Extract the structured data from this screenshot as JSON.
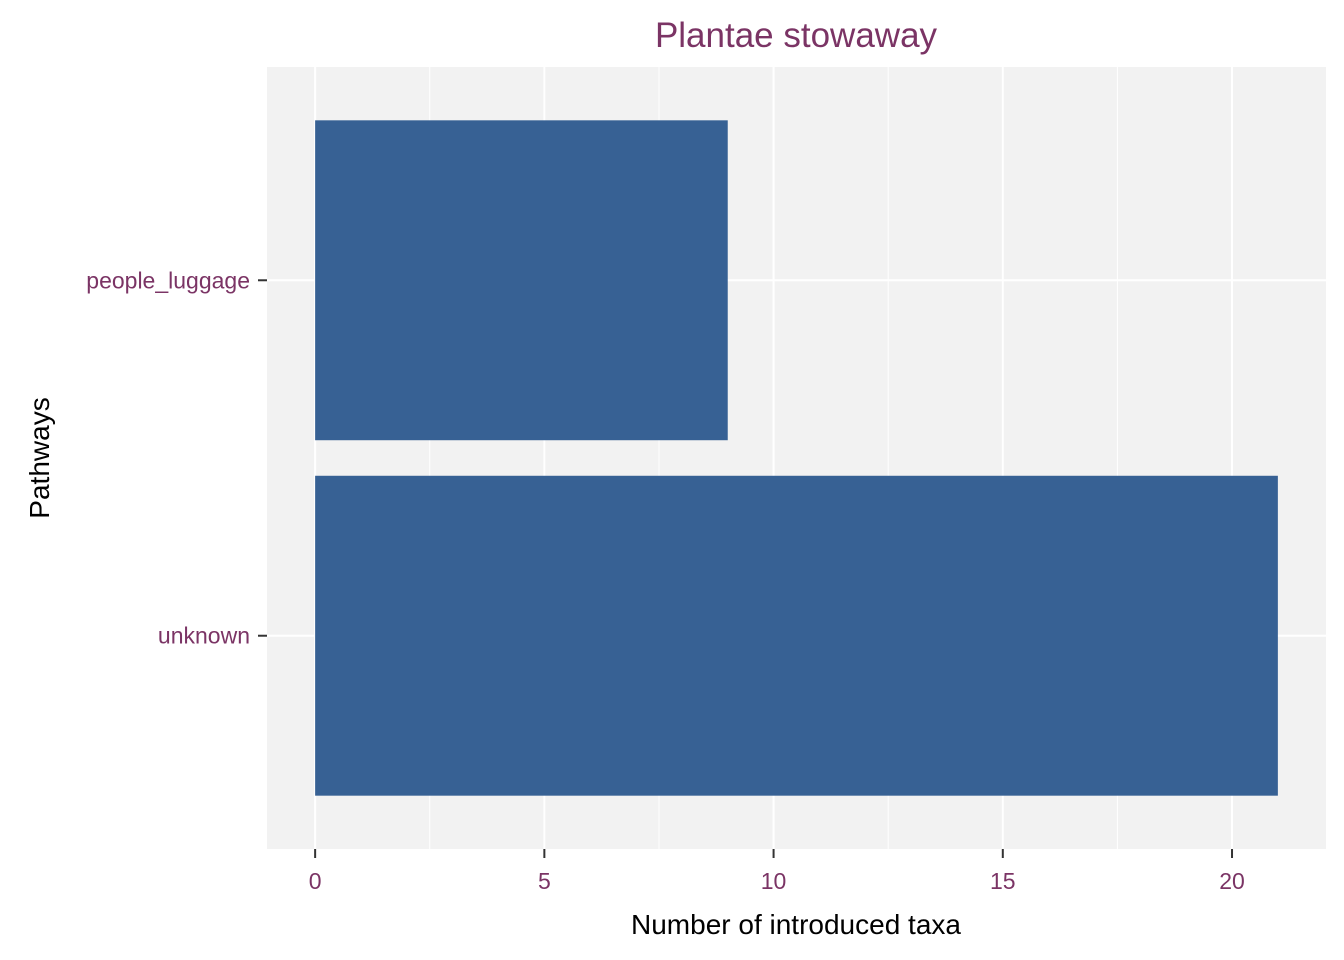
{
  "chart_data": {
    "type": "bar",
    "orientation": "horizontal",
    "title": "Plantae stowaway",
    "xlabel": "Number of introduced taxa",
    "ylabel": "Pathways",
    "categories": [
      "people_luggage",
      "unknown"
    ],
    "values": [
      9,
      21
    ],
    "xlim": [
      -1.05,
      22.05
    ],
    "xticks": [
      0,
      5,
      10,
      15,
      20
    ],
    "xtick_labels": [
      "0",
      "5",
      "10",
      "15",
      "20"
    ],
    "grid": true,
    "legend": "none",
    "colors": {
      "bar": "#376194",
      "panel_background": "#F2F2F2",
      "grid": "#FFFFFF",
      "accent_text": "#7B3465",
      "axis_title": "#000000"
    }
  }
}
